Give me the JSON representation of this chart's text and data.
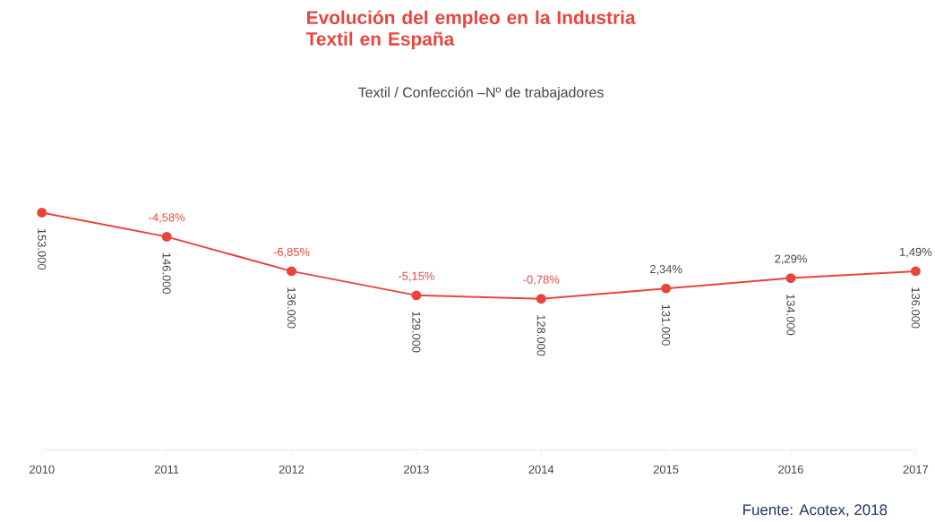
{
  "chart_data": {
    "type": "line",
    "title": "Evolución del empleo en la Industria Textil en España",
    "subtitle": "Textil / Confección –Nº de trabajadores",
    "categories": [
      "2010",
      "2011",
      "2012",
      "2013",
      "2014",
      "2015",
      "2016",
      "2017"
    ],
    "values": [
      153000,
      146000,
      136000,
      129000,
      128000,
      131000,
      134000,
      136000
    ],
    "value_labels": [
      "153.000",
      "146.000",
      "136.000",
      "129.000",
      "128.000",
      "131.000",
      "134.000",
      "136.000"
    ],
    "color": "#e8453c",
    "marker": "circle",
    "annotations": [
      "-4,58%",
      "-6,85%",
      "-5,15%",
      "-0,78%",
      "2,34%",
      "2,29%",
      "1,49%",
      "Fuente: Acotex, 2018"
    ]
  }
}
